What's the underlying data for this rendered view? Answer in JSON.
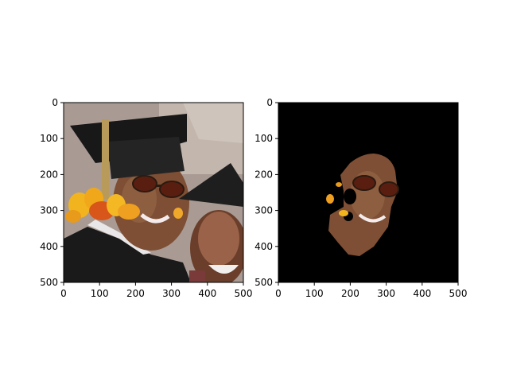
{
  "chart_data": [
    {
      "type": "image",
      "content": "photo of two people at a graduation: man in cap and sunglasses, woman laughing; yellow/orange leaf overlay on left",
      "xlim": [
        0,
        500
      ],
      "ylim": [
        500,
        0
      ],
      "xticks": [
        0,
        100,
        200,
        300,
        400,
        500
      ],
      "yticks": [
        0,
        100,
        200,
        300,
        400,
        500
      ],
      "xtick_labels": [
        "0",
        "100",
        "200",
        "300",
        "400",
        "500"
      ],
      "ytick_labels": [
        "0",
        "100",
        "200",
        "300",
        "400",
        "500"
      ],
      "title": "",
      "xlabel": "",
      "ylabel": ""
    },
    {
      "type": "image",
      "content": "segmentation mask result: black background with the man's face region cut out",
      "xlim": [
        0,
        500
      ],
      "ylim": [
        500,
        0
      ],
      "xticks": [
        0,
        100,
        200,
        300,
        400,
        500
      ],
      "yticks": [
        0,
        100,
        200,
        300,
        400,
        500
      ],
      "xtick_labels": [
        "0",
        "100",
        "200",
        "300",
        "400",
        "500"
      ],
      "ytick_labels": [
        "0",
        "100",
        "200",
        "300",
        "400",
        "500"
      ],
      "title": "",
      "xlabel": "",
      "ylabel": ""
    }
  ],
  "colors": {
    "mask_background": "#000000",
    "skin": "#8a5a3c",
    "leaves": "#f0a020",
    "cap": "#1c1c1c",
    "wall": "#a89890"
  }
}
